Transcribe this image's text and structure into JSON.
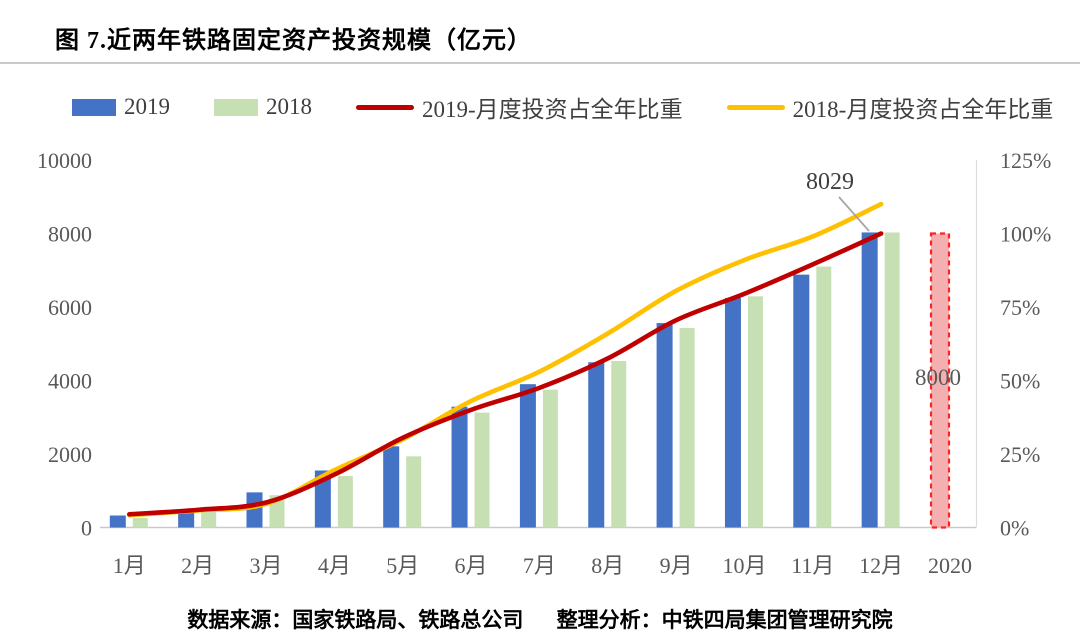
{
  "title": "图 7.近两年铁路固定资产投资规模（亿元）",
  "legend": [
    {
      "label": "2019",
      "type": "bar",
      "color": "#4472c4"
    },
    {
      "label": "2018",
      "type": "bar",
      "color": "#c6e0b4"
    },
    {
      "label": "2019-月度投资占全年比重",
      "type": "line",
      "color": "#c00000"
    },
    {
      "label": "2018-月度投资占全年比重",
      "type": "line",
      "color": "#ffc000"
    }
  ],
  "footer": {
    "source": "数据来源：国家铁路局、铁路总公司",
    "analysis": "整理分析：中铁四局集团管理研究院"
  },
  "chart_data": {
    "type": "bar",
    "subtype": "combo bar+line, dual axis",
    "categories": [
      "1月",
      "2月",
      "3月",
      "4月",
      "5月",
      "6月",
      "7月",
      "8月",
      "9月",
      "10月",
      "11月",
      "12月"
    ],
    "series": [
      {
        "name": "2019",
        "type": "bar",
        "axis": "left",
        "color": "#4472c4",
        "values": [
          326,
          420,
          956,
          1551,
          2209,
          3287,
          3900,
          4496,
          5563,
          6247,
          6880,
          8029
        ]
      },
      {
        "name": "2018",
        "type": "bar",
        "axis": "left",
        "color": "#c6e0b4",
        "values": [
          260,
          440,
          880,
          1400,
          1937,
          3127,
          3750,
          4530,
          5430,
          6290,
          7100,
          8028
        ]
      },
      {
        "name": "2019-月度投资占全年比重",
        "type": "line",
        "axis": "right",
        "color": "#c00000",
        "values_pct": [
          4.5,
          6.0,
          8.5,
          18.0,
          30.5,
          40.0,
          47.5,
          57.5,
          70.5,
          79.5,
          89.5,
          100.0
        ]
      },
      {
        "name": "2018-月度投资占全年比重",
        "type": "line",
        "axis": "right",
        "color": "#ffc000",
        "values_pct": [
          4.2,
          5.8,
          8.0,
          19.5,
          30.0,
          43.0,
          53.0,
          66.0,
          80.5,
          91.0,
          99.0,
          110.0
        ]
      }
    ],
    "projection": {
      "category": "2020",
      "value": 8000,
      "data_label": "8000",
      "fill": "#f2a2a2",
      "stroke": "#ff2222",
      "style": "dashed"
    },
    "annotation": {
      "text": "8029",
      "target_series": "2019",
      "target_category": "12月"
    },
    "left_axis": {
      "ticks": [
        0,
        2000,
        4000,
        6000,
        8000,
        10000
      ],
      "max": 10000
    },
    "right_axis": {
      "tick_labels": [
        "0%",
        "25%",
        "50%",
        "75%",
        "100%",
        "125%"
      ],
      "tick_values": [
        0,
        25,
        50,
        75,
        100,
        125
      ],
      "max": 125
    },
    "grid": "none",
    "legend_position": "top"
  }
}
